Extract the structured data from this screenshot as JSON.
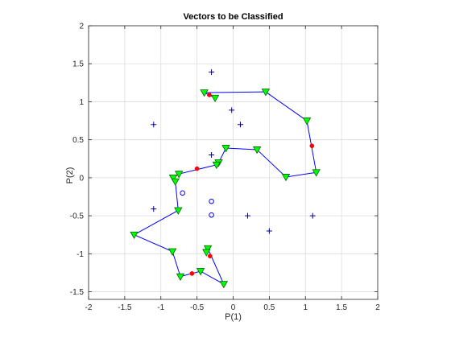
{
  "chart_data": {
    "type": "scatter",
    "title": "Vectors to be Classified",
    "xlabel": "P(1)",
    "ylabel": "P(2)",
    "xlim": [
      -2,
      2
    ],
    "ylim": [
      -1.6,
      2.0
    ],
    "xticks": [
      -2,
      -1.5,
      -1,
      -0.5,
      0,
      0.5,
      1,
      1.5,
      2
    ],
    "xtick_labels": [
      "-2",
      "-1.5",
      "-1",
      "-0.5",
      "0",
      "0.5",
      "1",
      "1.5",
      "2"
    ],
    "yticks": [
      -1.5,
      -1,
      -0.5,
      0,
      0.5,
      1,
      1.5,
      2
    ],
    "ytick_labels": [
      "-1.5",
      "-1",
      "-0.5",
      "0",
      "0.5",
      "1",
      "1.5",
      "2"
    ],
    "grid": true,
    "colors": {
      "line": "#0000ff",
      "triangle_fill": "#00ff00",
      "triangle_edge": "#006600",
      "dot": "#ff0000",
      "plus": "#00008b",
      "circle": "#0000ff"
    },
    "series": [
      {
        "marker": "plus",
        "points": [
          [
            -0.3,
            1.39
          ],
          [
            -0.02,
            0.89
          ],
          [
            -1.1,
            0.7
          ],
          [
            0.1,
            0.7
          ],
          [
            -0.3,
            0.3
          ],
          [
            -1.1,
            -0.41
          ],
          [
            0.2,
            -0.5
          ],
          [
            1.1,
            -0.5
          ],
          [
            0.5,
            -0.7
          ]
        ]
      },
      {
        "marker": "circle",
        "points": [
          [
            -0.7,
            -0.2
          ],
          [
            -0.3,
            -0.31
          ],
          [
            -0.3,
            -0.49
          ]
        ]
      },
      {
        "marker": "triangle-line",
        "points": [
          [
            -0.25,
            1.05
          ],
          [
            -0.4,
            1.12
          ],
          [
            0.45,
            1.13
          ],
          [
            1.02,
            0.75
          ],
          [
            1.15,
            0.07
          ],
          [
            0.73,
            0.01
          ],
          [
            0.33,
            0.37
          ],
          [
            -0.1,
            0.39
          ],
          [
            -0.2,
            0.2
          ],
          [
            -0.23,
            0.17
          ],
          [
            -0.75,
            0.05
          ],
          [
            -0.83,
            0.0
          ],
          [
            -0.8,
            -0.05
          ],
          [
            -0.76,
            -0.43
          ],
          [
            -1.37,
            -0.75
          ],
          [
            -0.84,
            -0.97
          ],
          [
            -0.73,
            -1.3
          ],
          [
            -0.45,
            -1.23
          ],
          [
            -0.13,
            -1.4
          ],
          [
            -0.35,
            -0.93
          ],
          [
            -0.37,
            -0.98
          ]
        ]
      },
      {
        "marker": "dot",
        "points": [
          [
            -0.33,
            1.09
          ],
          [
            1.09,
            0.42
          ],
          [
            -0.5,
            0.12
          ],
          [
            -0.57,
            -1.26
          ],
          [
            -0.32,
            -1.03
          ]
        ]
      }
    ]
  }
}
